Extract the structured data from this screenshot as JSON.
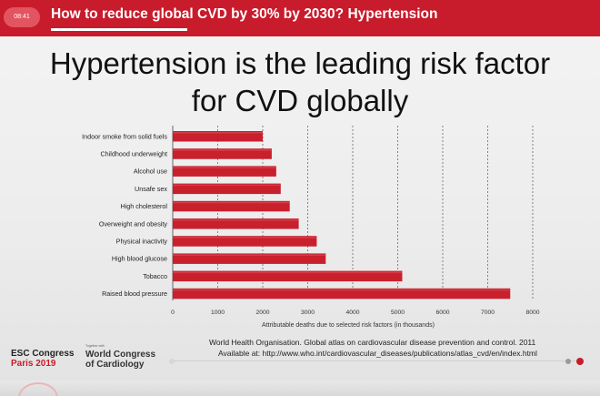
{
  "header": {
    "time": "08:41",
    "title": "How to reduce global CVD by 30% by 2030? Hypertension"
  },
  "slide": {
    "headline_line1": "Hypertension is the leading risk factor",
    "headline_line2": "for CVD globally"
  },
  "chart_data": {
    "type": "bar",
    "orientation": "horizontal",
    "categories": [
      "Indoor smoke from solid fuels",
      "Childhood underweight",
      "Alcohol use",
      "Unsafe sex",
      "High cholesterol",
      "Overweight and obesity",
      "Physical inactivity",
      "High blood glucose",
      "Tobacco",
      "Raised blood pressure"
    ],
    "values": [
      2000,
      2200,
      2300,
      2400,
      2600,
      2800,
      3200,
      3400,
      5100,
      7500
    ],
    "xlabel": "Attributable deaths due to selected risk factors (in thousands)",
    "ylabel": "",
    "xlim": [
      0,
      8000
    ],
    "xticks": [
      0,
      1000,
      2000,
      3000,
      4000,
      5000,
      6000,
      7000,
      8000
    ],
    "grid": "vertical dashed",
    "bar_color": "#c8202c",
    "title": ""
  },
  "branding": {
    "esc_line1": "ESC Congress",
    "esc_line2": "Paris 2019",
    "together": "Together with",
    "wcc_line1": "World Congress",
    "wcc_line2": "of Cardiology"
  },
  "source": {
    "line1": "World Health Organisation. Global atlas on cardiovascular disease prevention and control. 2011",
    "line2": "Available at: http://www.who.int/cardiovascular_diseases/publications/atlas_cvd/en/index.html"
  },
  "colors": {
    "accent": "#c81b2b",
    "bar": "#c8202c"
  }
}
